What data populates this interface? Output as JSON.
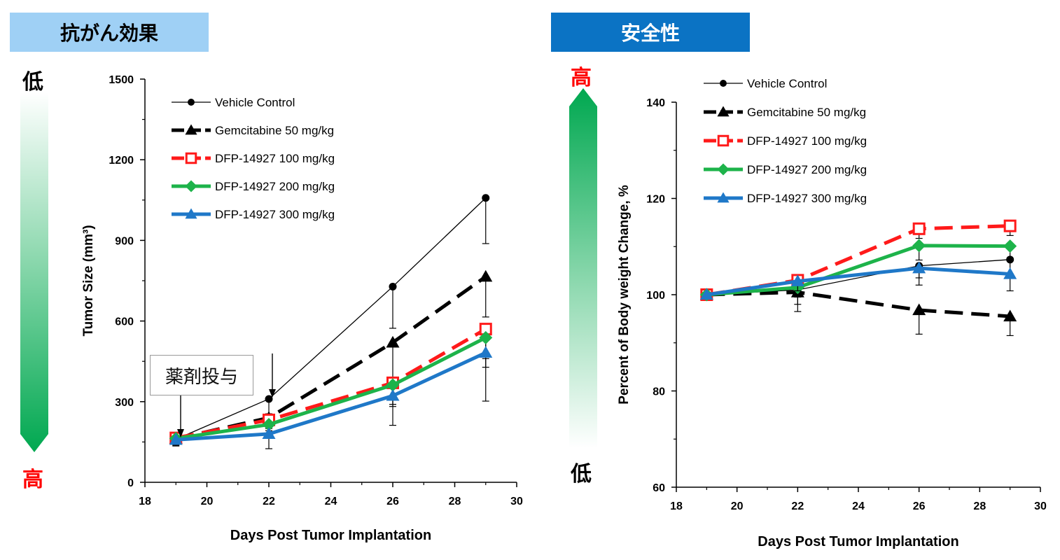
{
  "left_panel": {
    "banner": "抗がん効果",
    "scale_top": "低",
    "scale_bottom": "高",
    "annotation": "薬剤投与"
  },
  "right_panel": {
    "banner": "安全性",
    "scale_top": "高",
    "scale_bottom": "低"
  },
  "colors": {
    "vehicle": "#000000",
    "gemcitabine": "#000000",
    "dfp100": "#ff1a1a",
    "dfp200": "#1db34a",
    "dfp300": "#1f78c8",
    "red_text": "#ff0000",
    "green_arrow": "#00a850"
  },
  "chart_data": [
    {
      "type": "line",
      "xlabel": "Days Post Tumor Implantation",
      "ylabel": "Tumor Size (mm³)",
      "xlim": [
        18,
        30
      ],
      "ylim": [
        0,
        1500
      ],
      "xticks": [
        18,
        20,
        22,
        24,
        26,
        28,
        30
      ],
      "yticks": [
        0,
        300,
        600,
        900,
        1200,
        1500
      ],
      "grid": false,
      "legend_position": "top-left",
      "x": [
        19,
        22,
        26,
        29
      ],
      "series": [
        {
          "name": "Vehicle Control",
          "values": [
            160,
            310,
            728,
            1058
          ],
          "errors": [
            25,
            55,
            155,
            170
          ],
          "marker": "circle",
          "style": "thin"
        },
        {
          "name": "Gemcitabine 50 mg/kg",
          "values": [
            162,
            240,
            520,
            765
          ],
          "errors": [
            20,
            40,
            130,
            150
          ],
          "marker": "triangle",
          "style": "dashed"
        },
        {
          "name": "DFP-14927 100 mg/kg",
          "values": [
            165,
            232,
            370,
            570
          ],
          "errors": [
            20,
            40,
            80,
            110
          ],
          "marker": "square",
          "style": "dashed"
        },
        {
          "name": "DFP-14927 200 mg/kg",
          "values": [
            163,
            215,
            362,
            538
          ],
          "errors": [
            20,
            40,
            80,
            110
          ],
          "marker": "diamond",
          "style": "solid"
        },
        {
          "name": "DFP-14927 300 mg/kg",
          "values": [
            158,
            180,
            322,
            482
          ],
          "errors": [
            20,
            55,
            110,
            180
          ],
          "marker": "triangle",
          "style": "solid"
        }
      ]
    },
    {
      "type": "line",
      "xlabel": "Days Post Tumor Implantation",
      "ylabel": "Percent of  Body weight Change, %",
      "xlim": [
        18,
        30
      ],
      "ylim": [
        60,
        140
      ],
      "xticks": [
        18,
        20,
        22,
        24,
        26,
        28,
        30
      ],
      "yticks": [
        60,
        80,
        100,
        120,
        140
      ],
      "grid": false,
      "legend_position": "top-left",
      "x": [
        19,
        22,
        26,
        29
      ],
      "series": [
        {
          "name": "Vehicle Control",
          "values": [
            100,
            101,
            106,
            107.3
          ],
          "errors": [
            0,
            3,
            2.5,
            3
          ],
          "marker": "circle",
          "style": "thin"
        },
        {
          "name": "Gemcitabine 50 mg/kg",
          "values": [
            100,
            100.5,
            96.8,
            95.5
          ],
          "errors": [
            0,
            4,
            5,
            4
          ],
          "marker": "triangle",
          "style": "dashed"
        },
        {
          "name": "DFP-14927 100 mg/kg",
          "values": [
            100,
            103,
            113.7,
            114.3
          ],
          "errors": [
            0,
            2,
            2,
            2
          ],
          "marker": "square",
          "style": "dashed"
        },
        {
          "name": "DFP-14927 200 mg/kg",
          "values": [
            100,
            101.5,
            110.2,
            110.1
          ],
          "errors": [
            0,
            2,
            3,
            3
          ],
          "marker": "diamond",
          "style": "solid"
        },
        {
          "name": "DFP-14927 300 mg/kg",
          "values": [
            100,
            102.8,
            105.5,
            104.3
          ],
          "errors": [
            0,
            2,
            3.5,
            3.5
          ],
          "marker": "triangle",
          "style": "solid"
        }
      ]
    }
  ]
}
